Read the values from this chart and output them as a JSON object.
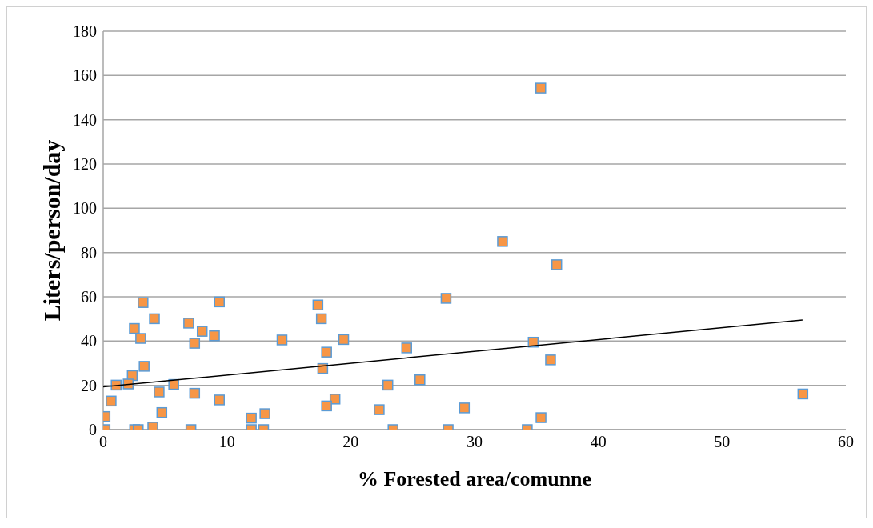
{
  "chart_data": {
    "type": "scatter",
    "xlabel": "% Forested area/comunne",
    "ylabel": "Liters/person/day",
    "xlim": [
      0,
      60
    ],
    "xticks": [
      0,
      10,
      20,
      30,
      40,
      50,
      60
    ],
    "ylim": [
      0,
      180
    ],
    "yticks": [
      0,
      20,
      40,
      60,
      80,
      100,
      120,
      140,
      160,
      180
    ],
    "grid": "y",
    "marker": "square",
    "series": [
      {
        "color": "#f79646",
        "x": [
          3.22,
          9.39,
          17.35,
          4.14,
          17.63,
          2.52,
          6.91,
          8.0,
          8.99,
          3.03,
          7.39,
          14.45,
          19.43,
          18.05,
          3.31,
          17.74,
          2.35,
          1.05,
          2.02,
          5.7,
          4.52,
          7.39,
          9.39,
          0.64,
          18.73,
          18.05,
          4.74,
          13.07,
          11.97,
          0.15,
          0.15,
          2.54,
          2.83,
          4.01,
          7.09,
          11.97,
          12.96,
          27.7,
          36.64,
          24.52,
          34.74,
          36.14,
          25.59,
          23.0,
          22.3,
          29.18,
          35.37,
          23.42,
          27.87,
          34.26,
          35.35,
          32.26,
          56.53
        ],
        "values": [
          57.4,
          57.7,
          56.3,
          50.1,
          50.1,
          45.7,
          48.1,
          44.4,
          42.4,
          41.2,
          39.0,
          40.5,
          40.7,
          35.0,
          28.6,
          27.6,
          24.4,
          20.1,
          20.6,
          20.4,
          17.0,
          16.4,
          13.4,
          12.9,
          13.8,
          10.7,
          7.7,
          7.2,
          5.2,
          5.9,
          0,
          0,
          0,
          1.1,
          0,
          0,
          0,
          59.3,
          74.5,
          36.9,
          39.5,
          31.5,
          22.5,
          20.1,
          9.0,
          9.8,
          5.4,
          0,
          0,
          0,
          154.3,
          85.0,
          16.1
        ]
      },
      {
        "type": "line",
        "color": "#000000",
        "marker": "none",
        "x": [
          0,
          56.5
        ],
        "values": [
          19.3,
          49.5
        ]
      }
    ]
  }
}
